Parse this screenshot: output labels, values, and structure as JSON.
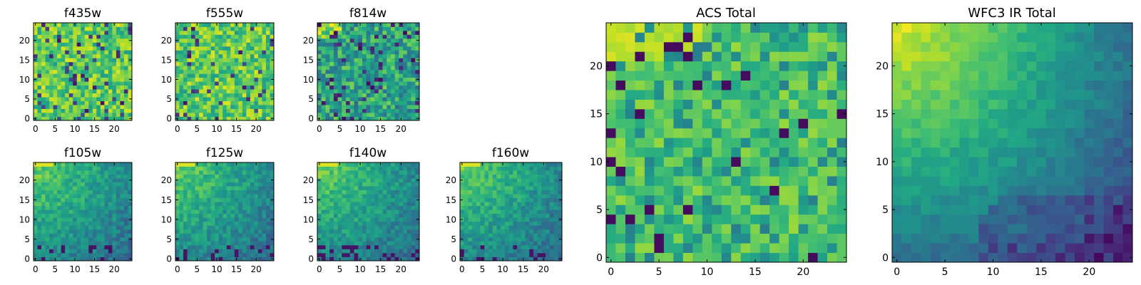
{
  "figure": {
    "background": "#ffffff",
    "colormap": "viridis"
  },
  "chart_data": [
    {
      "type": "heatmap",
      "title": "f435w",
      "xlim": [
        0,
        25
      ],
      "ylim": [
        0,
        25
      ],
      "xticks": [
        0,
        5,
        10,
        15,
        20
      ],
      "yticks": [
        0,
        5,
        10,
        15,
        20
      ],
      "grid_size": 25,
      "pattern": "noise_bright",
      "value_range": [
        0,
        1
      ]
    },
    {
      "type": "heatmap",
      "title": "f555w",
      "xlim": [
        0,
        25
      ],
      "ylim": [
        0,
        25
      ],
      "xticks": [
        0,
        5,
        10,
        15,
        20
      ],
      "yticks": [
        0,
        5,
        10,
        15,
        20
      ],
      "grid_size": 25,
      "pattern": "noise_bright",
      "value_range": [
        0,
        1
      ]
    },
    {
      "type": "heatmap",
      "title": "f814w",
      "xlim": [
        0,
        25
      ],
      "ylim": [
        0,
        25
      ],
      "xticks": [
        0,
        5,
        10,
        15,
        20
      ],
      "yticks": [
        0,
        5,
        10,
        15,
        20
      ],
      "grid_size": 25,
      "pattern": "noise_mid",
      "value_range": [
        0,
        1
      ]
    },
    {
      "type": "heatmap",
      "title": "f105w",
      "xlim": [
        0,
        25
      ],
      "ylim": [
        0,
        25
      ],
      "xticks": [
        0,
        5,
        10,
        15,
        20
      ],
      "yticks": [
        0,
        5,
        10,
        15,
        20
      ],
      "grid_size": 25,
      "pattern": "smooth_topleft",
      "value_range": [
        0,
        1
      ]
    },
    {
      "type": "heatmap",
      "title": "f125w",
      "xlim": [
        0,
        25
      ],
      "ylim": [
        0,
        25
      ],
      "xticks": [
        0,
        5,
        10,
        15,
        20
      ],
      "yticks": [
        0,
        5,
        10,
        15,
        20
      ],
      "grid_size": 25,
      "pattern": "smooth_topleft",
      "value_range": [
        0,
        1
      ]
    },
    {
      "type": "heatmap",
      "title": "f140w",
      "xlim": [
        0,
        25
      ],
      "ylim": [
        0,
        25
      ],
      "xticks": [
        0,
        5,
        10,
        15,
        20
      ],
      "yticks": [
        0,
        5,
        10,
        15,
        20
      ],
      "grid_size": 25,
      "pattern": "smooth_topleft",
      "value_range": [
        0,
        1
      ]
    },
    {
      "type": "heatmap",
      "title": "f160w",
      "xlim": [
        0,
        25
      ],
      "ylim": [
        0,
        25
      ],
      "xticks": [
        0,
        5,
        10,
        15,
        20
      ],
      "yticks": [
        0,
        5,
        10,
        15,
        20
      ],
      "grid_size": 25,
      "pattern": "smooth_topleft",
      "value_range": [
        0,
        1
      ]
    },
    {
      "type": "heatmap",
      "title": "ACS Total",
      "xlim": [
        0,
        25
      ],
      "ylim": [
        0,
        25
      ],
      "xticks": [
        0,
        5,
        10,
        15,
        20
      ],
      "yticks": [
        0,
        5,
        10,
        15,
        20
      ],
      "grid_size": 25,
      "pattern": "acs_total",
      "value_range": [
        0,
        1
      ]
    },
    {
      "type": "heatmap",
      "title": "WFC3 IR Total",
      "xlim": [
        0,
        25
      ],
      "ylim": [
        0,
        25
      ],
      "xticks": [
        0,
        5,
        10,
        15,
        20
      ],
      "yticks": [
        0,
        5,
        10,
        15,
        20
      ],
      "grid_size": 25,
      "pattern": "ir_total",
      "value_range": [
        0,
        1
      ]
    }
  ]
}
